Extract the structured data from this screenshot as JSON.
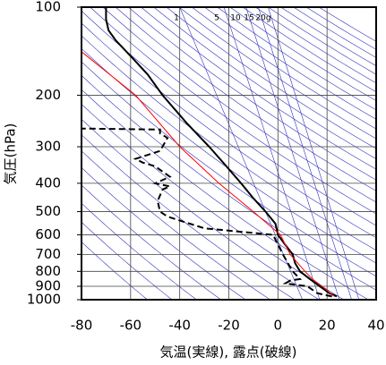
{
  "chart_data": {
    "type": "line",
    "x_label": "気温(実線), 露点(破線)",
    "y_label": "気圧(hPa)",
    "xlim": [
      -80,
      40
    ],
    "xticks": [
      -80,
      -60,
      -40,
      -20,
      0,
      20,
      40
    ],
    "ylim": [
      1000,
      100
    ],
    "yticks": [
      100,
      200,
      300,
      400,
      500,
      600,
      700,
      800,
      900,
      1000
    ],
    "y_scale": "log",
    "grid": true,
    "mixing_ratio_labels": [
      "1",
      "5",
      "10",
      "15",
      "20g"
    ],
    "series": [
      {
        "color": "#000000",
        "dash": false,
        "pressure": [
          975,
          950,
          900,
          850,
          800,
          750,
          700,
          650,
          600,
          550,
          500,
          450,
          400,
          350,
          300,
          250,
          200,
          170,
          150,
          130,
          120,
          110,
          100
        ],
        "values": [
          24,
          21,
          17,
          13,
          9,
          7,
          6,
          3,
          0,
          -1,
          -5,
          -10,
          -15,
          -21,
          -28,
          -37,
          -47,
          -53,
          -59,
          -66,
          -69,
          -70,
          -70
        ]
      },
      {
        "color": "#000000",
        "dash": true,
        "pressure": [
          975,
          950,
          900,
          880,
          860,
          850,
          800,
          700,
          600,
          570,
          520,
          500,
          460,
          420,
          410,
          400,
          380,
          350,
          340,
          330,
          310,
          290,
          280,
          270,
          262,
          260
        ],
        "values": [
          22,
          16,
          12,
          3,
          5,
          9,
          6,
          2,
          -2,
          -30,
          -45,
          -48,
          -49,
          -47,
          -44,
          -50,
          -44,
          -50,
          -55,
          -58,
          -48,
          -46,
          -45,
          -48,
          -48,
          -80
        ]
      },
      {
        "color": "#ff0000",
        "dash": false,
        "pressure": [
          975,
          900,
          850,
          800,
          700,
          600,
          500,
          400,
          300,
          200,
          142
        ],
        "values": [
          23,
          18,
          14,
          11,
          5,
          1,
          -10,
          -24,
          -40,
          -58,
          -80
        ]
      }
    ]
  }
}
